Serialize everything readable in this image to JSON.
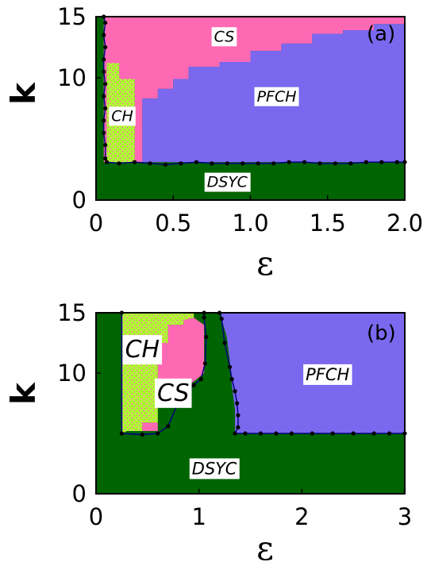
{
  "chart_data": [
    {
      "type": "heatmap",
      "panel_label": "(a)",
      "xlabel": "ε",
      "ylabel": "k",
      "xlim": [
        0,
        2.0
      ],
      "ylim": [
        0,
        15
      ],
      "x_ticks": [
        "0",
        "0.5",
        "1.0",
        "1.5",
        "2.0"
      ],
      "x_tick_values": [
        0,
        0.5,
        1.0,
        1.5,
        2.0
      ],
      "y_ticks": [
        "0",
        "10",
        "15"
      ],
      "y_tick_values": [
        0,
        10,
        15
      ],
      "colors": {
        "DSYC": "#006400",
        "CS": "#ff69b4",
        "PFCH": "#7b68ee",
        "CH": "#adff2f"
      },
      "regions": [
        {
          "name": "CS",
          "polygon": [
            [
              0.05,
              15
            ],
            [
              2.0,
              15
            ],
            [
              2.0,
              14.4
            ],
            [
              1.8,
              14.4
            ],
            [
              1.8,
              13.9
            ],
            [
              1.6,
              13.9
            ],
            [
              1.6,
              13.6
            ],
            [
              1.4,
              13.6
            ],
            [
              1.4,
              12.8
            ],
            [
              1.2,
              12.8
            ],
            [
              1.2,
              12.2
            ],
            [
              1.0,
              12.2
            ],
            [
              1.0,
              11.3
            ],
            [
              0.8,
              11.3
            ],
            [
              0.8,
              10.9
            ],
            [
              0.6,
              10.9
            ],
            [
              0.6,
              9.9
            ],
            [
              0.5,
              9.9
            ],
            [
              0.5,
              9.1
            ],
            [
              0.4,
              9.1
            ],
            [
              0.4,
              8.3
            ],
            [
              0.3,
              8.3
            ],
            [
              0.3,
              7.5
            ],
            [
              0.3,
              3.1
            ],
            [
              0.25,
              3.1
            ],
            [
              0.25,
              9.9
            ],
            [
              0.15,
              9.9
            ],
            [
              0.15,
              11.2
            ],
            [
              0.07,
              11.2
            ],
            [
              0.07,
              3.1
            ],
            [
              0.05,
              3.1
            ]
          ]
        },
        {
          "name": "PFCH",
          "polygon": [
            [
              0.3,
              3.1
            ],
            [
              0.3,
              8.3
            ],
            [
              0.4,
              8.3
            ],
            [
              0.4,
              9.1
            ],
            [
              0.5,
              9.1
            ],
            [
              0.5,
              9.9
            ],
            [
              0.6,
              9.9
            ],
            [
              0.6,
              10.9
            ],
            [
              0.8,
              10.9
            ],
            [
              0.8,
              11.3
            ],
            [
              1.0,
              11.3
            ],
            [
              1.0,
              12.2
            ],
            [
              1.2,
              12.2
            ],
            [
              1.2,
              12.8
            ],
            [
              1.4,
              12.8
            ],
            [
              1.4,
              13.6
            ],
            [
              1.6,
              13.6
            ],
            [
              1.6,
              13.9
            ],
            [
              1.8,
              13.9
            ],
            [
              1.8,
              14.4
            ],
            [
              2.0,
              14.4
            ],
            [
              2.0,
              3.1
            ]
          ]
        },
        {
          "name": "CH",
          "polygon": [
            [
              0.07,
              11.2
            ],
            [
              0.15,
              11.2
            ],
            [
              0.15,
              9.9
            ],
            [
              0.25,
              9.9
            ],
            [
              0.25,
              3.1
            ],
            [
              0.07,
              3.1
            ]
          ]
        }
      ],
      "boundary_points": [
        [
          0.05,
          15
        ],
        [
          0.06,
          14.5
        ],
        [
          0.05,
          13.5
        ],
        [
          0.06,
          12.5
        ],
        [
          0.05,
          11.5
        ],
        [
          0.05,
          10.5
        ],
        [
          0.06,
          9.5
        ],
        [
          0.05,
          8.5
        ],
        [
          0.06,
          7.5
        ],
        [
          0.05,
          6.5
        ],
        [
          0.05,
          5.5
        ],
        [
          0.06,
          4.5
        ],
        [
          0.06,
          3.4
        ],
        [
          0.07,
          3.1
        ],
        [
          0.15,
          3.0
        ],
        [
          0.25,
          3.1
        ],
        [
          0.35,
          3.0
        ],
        [
          0.45,
          2.9
        ],
        [
          0.55,
          3.0
        ],
        [
          0.65,
          3.1
        ],
        [
          0.75,
          3.0
        ],
        [
          0.85,
          3.0
        ],
        [
          0.95,
          3.0
        ],
        [
          1.05,
          3.0
        ],
        [
          1.15,
          3.0
        ],
        [
          1.25,
          3.1
        ],
        [
          1.35,
          3.1
        ],
        [
          1.45,
          3.0
        ],
        [
          1.55,
          3.0
        ],
        [
          1.65,
          3.0
        ],
        [
          1.75,
          3.1
        ],
        [
          1.85,
          3.1
        ],
        [
          1.95,
          3.1
        ],
        [
          2.0,
          3.1
        ]
      ],
      "labels": [
        {
          "text": "CS",
          "x": 0.83,
          "y": 13.4
        },
        {
          "text": "PFCH",
          "x": 1.17,
          "y": 8.5
        },
        {
          "text": "CH",
          "x": 0.17,
          "y": 6.9
        },
        {
          "text": "DSYC",
          "x": 0.85,
          "y": 1.5
        }
      ]
    },
    {
      "type": "heatmap",
      "panel_label": "(b)",
      "xlabel": "ε",
      "ylabel": "k",
      "xlim": [
        0,
        3
      ],
      "ylim": [
        0,
        15
      ],
      "x_ticks": [
        "0",
        "1",
        "2",
        "3"
      ],
      "x_tick_values": [
        0,
        1,
        2,
        3
      ],
      "y_ticks": [
        "0",
        "10",
        "15"
      ],
      "y_tick_values": [
        0,
        10,
        15
      ],
      "colors": {
        "DSYC": "#006400",
        "CS": "#ff69b4",
        "PFCH": "#7b68ee",
        "CH": "#adff2f"
      },
      "regions": [
        {
          "name": "CH",
          "polygon": [
            [
              0.25,
              15
            ],
            [
              0.95,
              15
            ],
            [
              0.95,
              14.6
            ],
            [
              0.85,
              14.4
            ],
            [
              0.85,
              14.0
            ],
            [
              0.7,
              14.0
            ],
            [
              0.7,
              12.5
            ],
            [
              0.6,
              12.5
            ],
            [
              0.6,
              10.0
            ],
            [
              0.6,
              5.9
            ],
            [
              0.45,
              5.9
            ],
            [
              0.45,
              5.2
            ],
            [
              0.3,
              5.2
            ],
            [
              0.25,
              5.0
            ]
          ]
        },
        {
          "name": "CS",
          "polygon": [
            [
              0.85,
              14.4
            ],
            [
              0.85,
              14.0
            ],
            [
              0.7,
              14.0
            ],
            [
              0.7,
              12.5
            ],
            [
              0.6,
              12.5
            ],
            [
              0.6,
              5.9
            ],
            [
              0.45,
              5.9
            ],
            [
              0.45,
              5.2
            ],
            [
              0.6,
              5.2
            ],
            [
              0.6,
              7.8
            ],
            [
              0.75,
              7.8
            ],
            [
              0.75,
              8.3
            ],
            [
              0.85,
              8.8
            ],
            [
              0.95,
              9.3
            ],
            [
              1.05,
              10.0
            ],
            [
              1.05,
              14.0
            ],
            [
              0.95,
              14.6
            ]
          ]
        },
        {
          "name": "PFCH",
          "polygon": [
            [
              1.22,
              15
            ],
            [
              3.0,
              15
            ],
            [
              3.0,
              5.0
            ],
            [
              1.35,
              5.0
            ],
            [
              1.35,
              7.0
            ],
            [
              1.32,
              9.0
            ],
            [
              1.3,
              11.0
            ],
            [
              1.27,
              13.0
            ],
            [
              1.22,
              14.5
            ]
          ]
        }
      ],
      "boundary_points": [
        [
          0.25,
          15
        ],
        [
          0.25,
          5.0
        ],
        [
          0.45,
          4.9
        ],
        [
          0.6,
          5.0
        ],
        [
          0.7,
          5.6
        ],
        [
          0.8,
          7.6
        ],
        [
          0.95,
          9.0
        ],
        [
          1.02,
          9.5
        ],
        [
          1.06,
          10.8
        ],
        [
          1.07,
          13.0
        ],
        [
          1.05,
          14.6
        ],
        [
          1.05,
          15
        ],
        [
          1.2,
          15
        ],
        [
          1.22,
          14.5
        ],
        [
          1.25,
          12.5
        ],
        [
          1.3,
          10.5
        ],
        [
          1.32,
          9.5
        ],
        [
          1.35,
          8.5
        ],
        [
          1.37,
          7.5
        ],
        [
          1.38,
          6.5
        ],
        [
          1.38,
          5.5
        ],
        [
          1.35,
          5.0
        ],
        [
          1.45,
          5.0
        ],
        [
          1.6,
          5.0
        ],
        [
          1.75,
          5.0
        ],
        [
          1.9,
          5.0
        ],
        [
          2.1,
          5.0
        ],
        [
          2.3,
          5.0
        ],
        [
          2.5,
          5.0
        ],
        [
          2.7,
          5.0
        ],
        [
          2.85,
          5.0
        ],
        [
          3.0,
          5.0
        ]
      ],
      "labels": [
        {
          "text": "CH",
          "x": 0.45,
          "y": 12.0
        },
        {
          "text": "CS",
          "x": 0.75,
          "y": 8.4
        },
        {
          "text": "PFCH",
          "x": 2.25,
          "y": 9.9
        },
        {
          "text": "DSYC",
          "x": 1.15,
          "y": 2.1
        }
      ]
    }
  ]
}
